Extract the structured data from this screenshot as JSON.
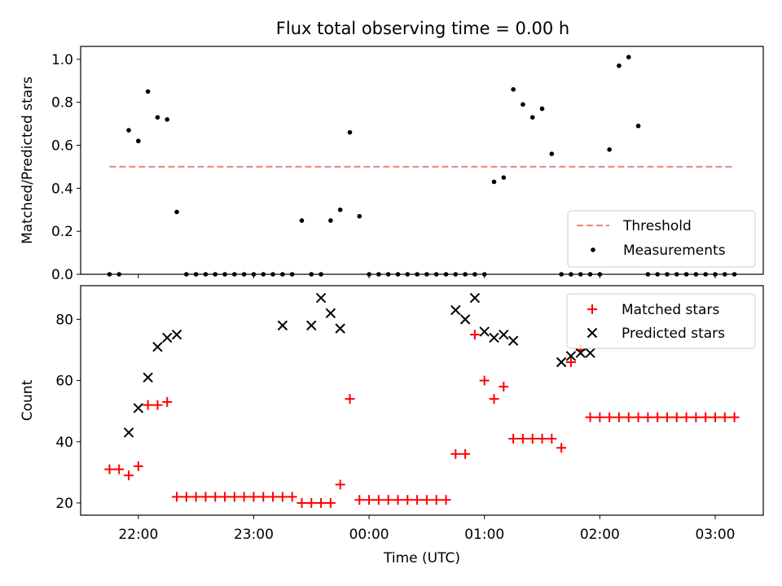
{
  "title": "Flux total observing time = 0.00 h",
  "colors": {
    "threshold": "#f08080",
    "measurement": "#000000",
    "matched": "#ff0000",
    "predicted": "#000000"
  },
  "chart_data": [
    {
      "type": "scatter",
      "ylabel": "Matched/Predicted stars",
      "ylim": [
        0,
        1.06
      ],
      "yticks": [
        "0.0",
        "0.2",
        "0.4",
        "0.6",
        "0.8",
        "1.0"
      ],
      "xticks": [
        "22:00",
        "23:00",
        "00:00",
        "01:00",
        "02:00",
        "03:00"
      ],
      "xtick_labels_visible": false,
      "legend": [
        "Threshold",
        "Measurements"
      ],
      "legend_position": "lower right",
      "threshold": {
        "name": "Threshold",
        "value": 0.5,
        "x_range": [
          "21:45",
          "03:10"
        ],
        "style": "dashed"
      },
      "series": [
        {
          "name": "Measurements",
          "x": [
            "21:45",
            "21:50",
            "21:55",
            "22:00",
            "22:05",
            "22:10",
            "22:15",
            "22:20",
            "22:25",
            "22:30",
            "22:35",
            "22:40",
            "22:45",
            "22:50",
            "22:55",
            "23:00",
            "23:05",
            "23:10",
            "23:15",
            "23:20",
            "23:25",
            "23:30",
            "23:35",
            "23:40",
            "23:45",
            "23:50",
            "23:55",
            "00:00",
            "00:05",
            "00:10",
            "00:15",
            "00:20",
            "00:25",
            "00:30",
            "00:35",
            "00:40",
            "00:45",
            "00:50",
            "00:55",
            "01:00",
            "01:05",
            "01:10",
            "01:15",
            "01:20",
            "01:25",
            "01:30",
            "01:35",
            "01:40",
            "01:45",
            "01:50",
            "01:55",
            "02:00",
            "02:05",
            "02:10",
            "02:15",
            "02:20",
            "02:25",
            "02:30",
            "02:35",
            "02:40",
            "02:45",
            "02:50",
            "02:55",
            "03:00",
            "03:05",
            "03:10"
          ],
          "y": [
            0,
            0,
            0.67,
            0.62,
            0.85,
            0.73,
            0.72,
            0.29,
            0,
            0,
            0,
            0,
            0,
            0,
            0,
            0,
            0,
            0,
            0,
            0,
            0.25,
            0,
            0,
            0.25,
            0.3,
            0.66,
            0.27,
            0,
            0,
            0,
            0,
            0,
            0,
            0,
            0,
            0,
            0,
            0,
            0,
            0,
            0.43,
            0.45,
            0.86,
            0.79,
            0.73,
            0.77,
            0.56,
            0,
            0,
            0,
            0,
            0,
            0.58,
            0.97,
            1.01,
            0.69,
            0,
            0,
            0,
            0,
            0,
            0,
            0,
            0,
            0,
            0
          ]
        }
      ]
    },
    {
      "type": "scatter",
      "xlabel": "Time (UTC)",
      "ylabel": "Count",
      "ylim": [
        16,
        91
      ],
      "yticks": [
        "20",
        "40",
        "60",
        "80"
      ],
      "xticks": [
        "22:00",
        "23:00",
        "00:00",
        "01:00",
        "02:00",
        "03:00"
      ],
      "legend": [
        "Matched stars",
        "Predicted stars"
      ],
      "legend_position": "upper right",
      "series": [
        {
          "name": "Matched stars",
          "x": [
            "21:45",
            "21:50",
            "21:55",
            "22:00",
            "22:05",
            "22:10",
            "22:15",
            "22:20",
            "22:25",
            "22:30",
            "22:35",
            "22:40",
            "22:45",
            "22:50",
            "22:55",
            "23:00",
            "23:05",
            "23:10",
            "23:15",
            "23:20",
            "23:25",
            "23:30",
            "23:35",
            "23:40",
            "23:45",
            "23:50",
            "23:55",
            "00:00",
            "00:05",
            "00:10",
            "00:15",
            "00:20",
            "00:25",
            "00:30",
            "00:35",
            "00:40",
            "00:45",
            "00:50",
            "00:55",
            "01:00",
            "01:05",
            "01:10",
            "01:15",
            "01:20",
            "01:25",
            "01:30",
            "01:35",
            "01:40",
            "01:45",
            "01:50",
            "01:55",
            "02:00",
            "02:05",
            "02:10",
            "02:15",
            "02:20",
            "02:25",
            "02:30",
            "02:35",
            "02:40",
            "02:45",
            "02:50",
            "02:55",
            "03:00",
            "03:05",
            "03:10"
          ],
          "y": [
            31,
            31,
            29,
            32,
            52,
            52,
            53,
            22,
            22,
            22,
            22,
            22,
            22,
            22,
            22,
            22,
            22,
            22,
            22,
            22,
            20,
            20,
            20,
            20,
            26,
            54,
            21,
            21,
            21,
            21,
            21,
            21,
            21,
            21,
            21,
            21,
            36,
            36,
            75,
            60,
            54,
            58,
            41,
            41,
            41,
            41,
            41,
            38,
            66,
            70,
            48,
            48,
            48,
            48,
            48,
            48,
            48,
            48,
            48,
            48,
            48,
            48,
            48,
            48,
            48,
            48
          ]
        },
        {
          "name": "Predicted stars",
          "x": [
            "21:55",
            "22:00",
            "22:05",
            "22:10",
            "22:15",
            "22:20",
            "23:15",
            "23:30",
            "23:35",
            "23:40",
            "23:45",
            "00:45",
            "00:50",
            "00:55",
            "01:00",
            "01:05",
            "01:10",
            "01:15",
            "01:40",
            "01:45",
            "01:50",
            "01:55"
          ],
          "y": [
            43,
            51,
            61,
            71,
            74,
            75,
            78,
            78,
            87,
            82,
            77,
            83,
            80,
            87,
            76,
            74,
            75,
            73,
            66,
            68,
            69,
            69
          ]
        }
      ]
    }
  ]
}
